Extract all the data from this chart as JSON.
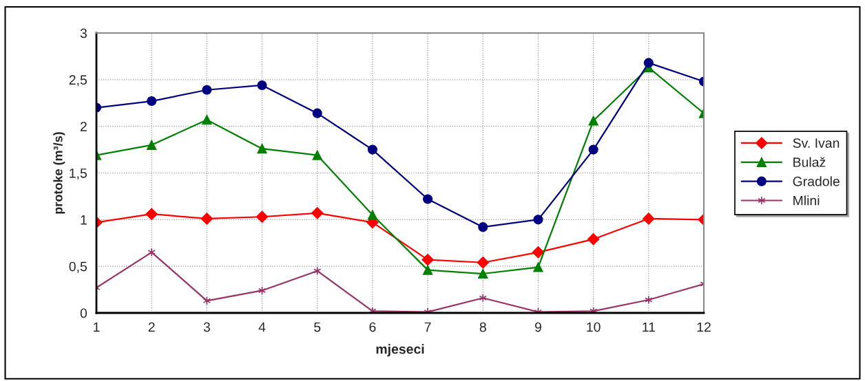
{
  "chart_data": {
    "type": "line",
    "xlabel": "mjeseci",
    "ylabel": "protoke (m³/s)",
    "x": [
      1,
      2,
      3,
      4,
      5,
      6,
      7,
      8,
      9,
      10,
      11,
      12
    ],
    "xlim": [
      1,
      12
    ],
    "xticks": [
      1,
      2,
      3,
      4,
      5,
      6,
      7,
      8,
      9,
      10,
      11,
      12
    ],
    "ylim": [
      0,
      3
    ],
    "yticks": [
      0,
      {
        "value": 0.5,
        "label": "0,5"
      },
      1,
      {
        "value": 1.5,
        "label": "1,5"
      },
      2,
      {
        "value": 2.5,
        "label": "2,5"
      },
      3
    ],
    "grid": true,
    "legend": "right",
    "line_style": "solid",
    "series": [
      {
        "name": "Sv. Ivan",
        "color": "#ff0000",
        "marker": "diamond",
        "values": [
          0.97,
          1.06,
          1.01,
          1.03,
          1.07,
          0.97,
          0.57,
          0.54,
          0.65,
          0.79,
          1.01,
          1.0
        ]
      },
      {
        "name": "Bulaž",
        "color": "#008000",
        "marker": "triangle",
        "values": [
          1.69,
          1.8,
          2.07,
          1.76,
          1.69,
          1.05,
          0.46,
          0.42,
          0.49,
          2.06,
          2.63,
          2.14
        ]
      },
      {
        "name": "Gradole",
        "color": "#000080",
        "marker": "circle",
        "values": [
          2.2,
          2.27,
          2.39,
          2.44,
          2.14,
          1.75,
          1.22,
          0.92,
          1.0,
          1.75,
          2.68,
          2.48
        ]
      },
      {
        "name": "Mlini",
        "color": "#993366",
        "marker": "cross",
        "values": [
          0.27,
          0.65,
          0.13,
          0.24,
          0.45,
          0.02,
          0.01,
          0.16,
          0.01,
          0.02,
          0.14,
          0.31
        ]
      }
    ]
  }
}
